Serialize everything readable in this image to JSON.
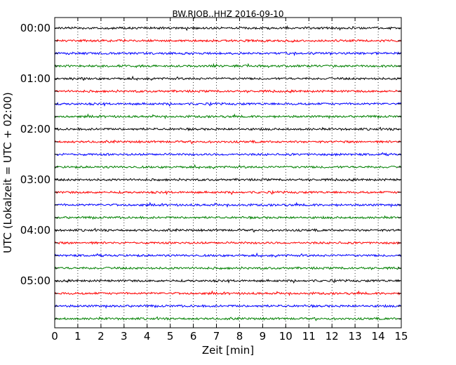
{
  "chart_data": {
    "type": "line",
    "title": "BW.RJOB..HHZ 2016-09-10",
    "xlabel": "Zeit  [min]",
    "ylabel": "UTC (Lokalzeit = UTC + 02:00)",
    "xlim": [
      0,
      15
    ],
    "x_ticks": [
      "0",
      "1",
      "2",
      "3",
      "4",
      "5",
      "6",
      "7",
      "8",
      "9",
      "10",
      "11",
      "12",
      "13",
      "14",
      "15"
    ],
    "y_ticks": [
      "00:00",
      "01:00",
      "02:00",
      "03:00",
      "04:00",
      "05:00"
    ],
    "grid": "vertical dotted",
    "trace_count": 24,
    "trace_interval_minutes": 15,
    "colors": [
      "#000000",
      "#ff0000",
      "#0000ff",
      "#008000"
    ],
    "series": [
      {
        "start": "00:00",
        "color": "#000000"
      },
      {
        "start": "00:15",
        "color": "#ff0000"
      },
      {
        "start": "00:30",
        "color": "#0000ff"
      },
      {
        "start": "00:45",
        "color": "#008000"
      },
      {
        "start": "01:00",
        "color": "#000000"
      },
      {
        "start": "01:15",
        "color": "#ff0000"
      },
      {
        "start": "01:30",
        "color": "#0000ff"
      },
      {
        "start": "01:45",
        "color": "#008000"
      },
      {
        "start": "02:00",
        "color": "#000000"
      },
      {
        "start": "02:15",
        "color": "#ff0000"
      },
      {
        "start": "02:30",
        "color": "#0000ff"
      },
      {
        "start": "02:45",
        "color": "#008000"
      },
      {
        "start": "03:00",
        "color": "#000000"
      },
      {
        "start": "03:15",
        "color": "#ff0000"
      },
      {
        "start": "03:30",
        "color": "#0000ff"
      },
      {
        "start": "03:45",
        "color": "#008000"
      },
      {
        "start": "04:00",
        "color": "#000000"
      },
      {
        "start": "04:15",
        "color": "#ff0000"
      },
      {
        "start": "04:30",
        "color": "#0000ff"
      },
      {
        "start": "04:45",
        "color": "#008000"
      },
      {
        "start": "05:00",
        "color": "#000000"
      },
      {
        "start": "05:15",
        "color": "#ff0000"
      },
      {
        "start": "05:30",
        "color": "#0000ff"
      },
      {
        "start": "05:45",
        "color": "#008000"
      }
    ]
  }
}
